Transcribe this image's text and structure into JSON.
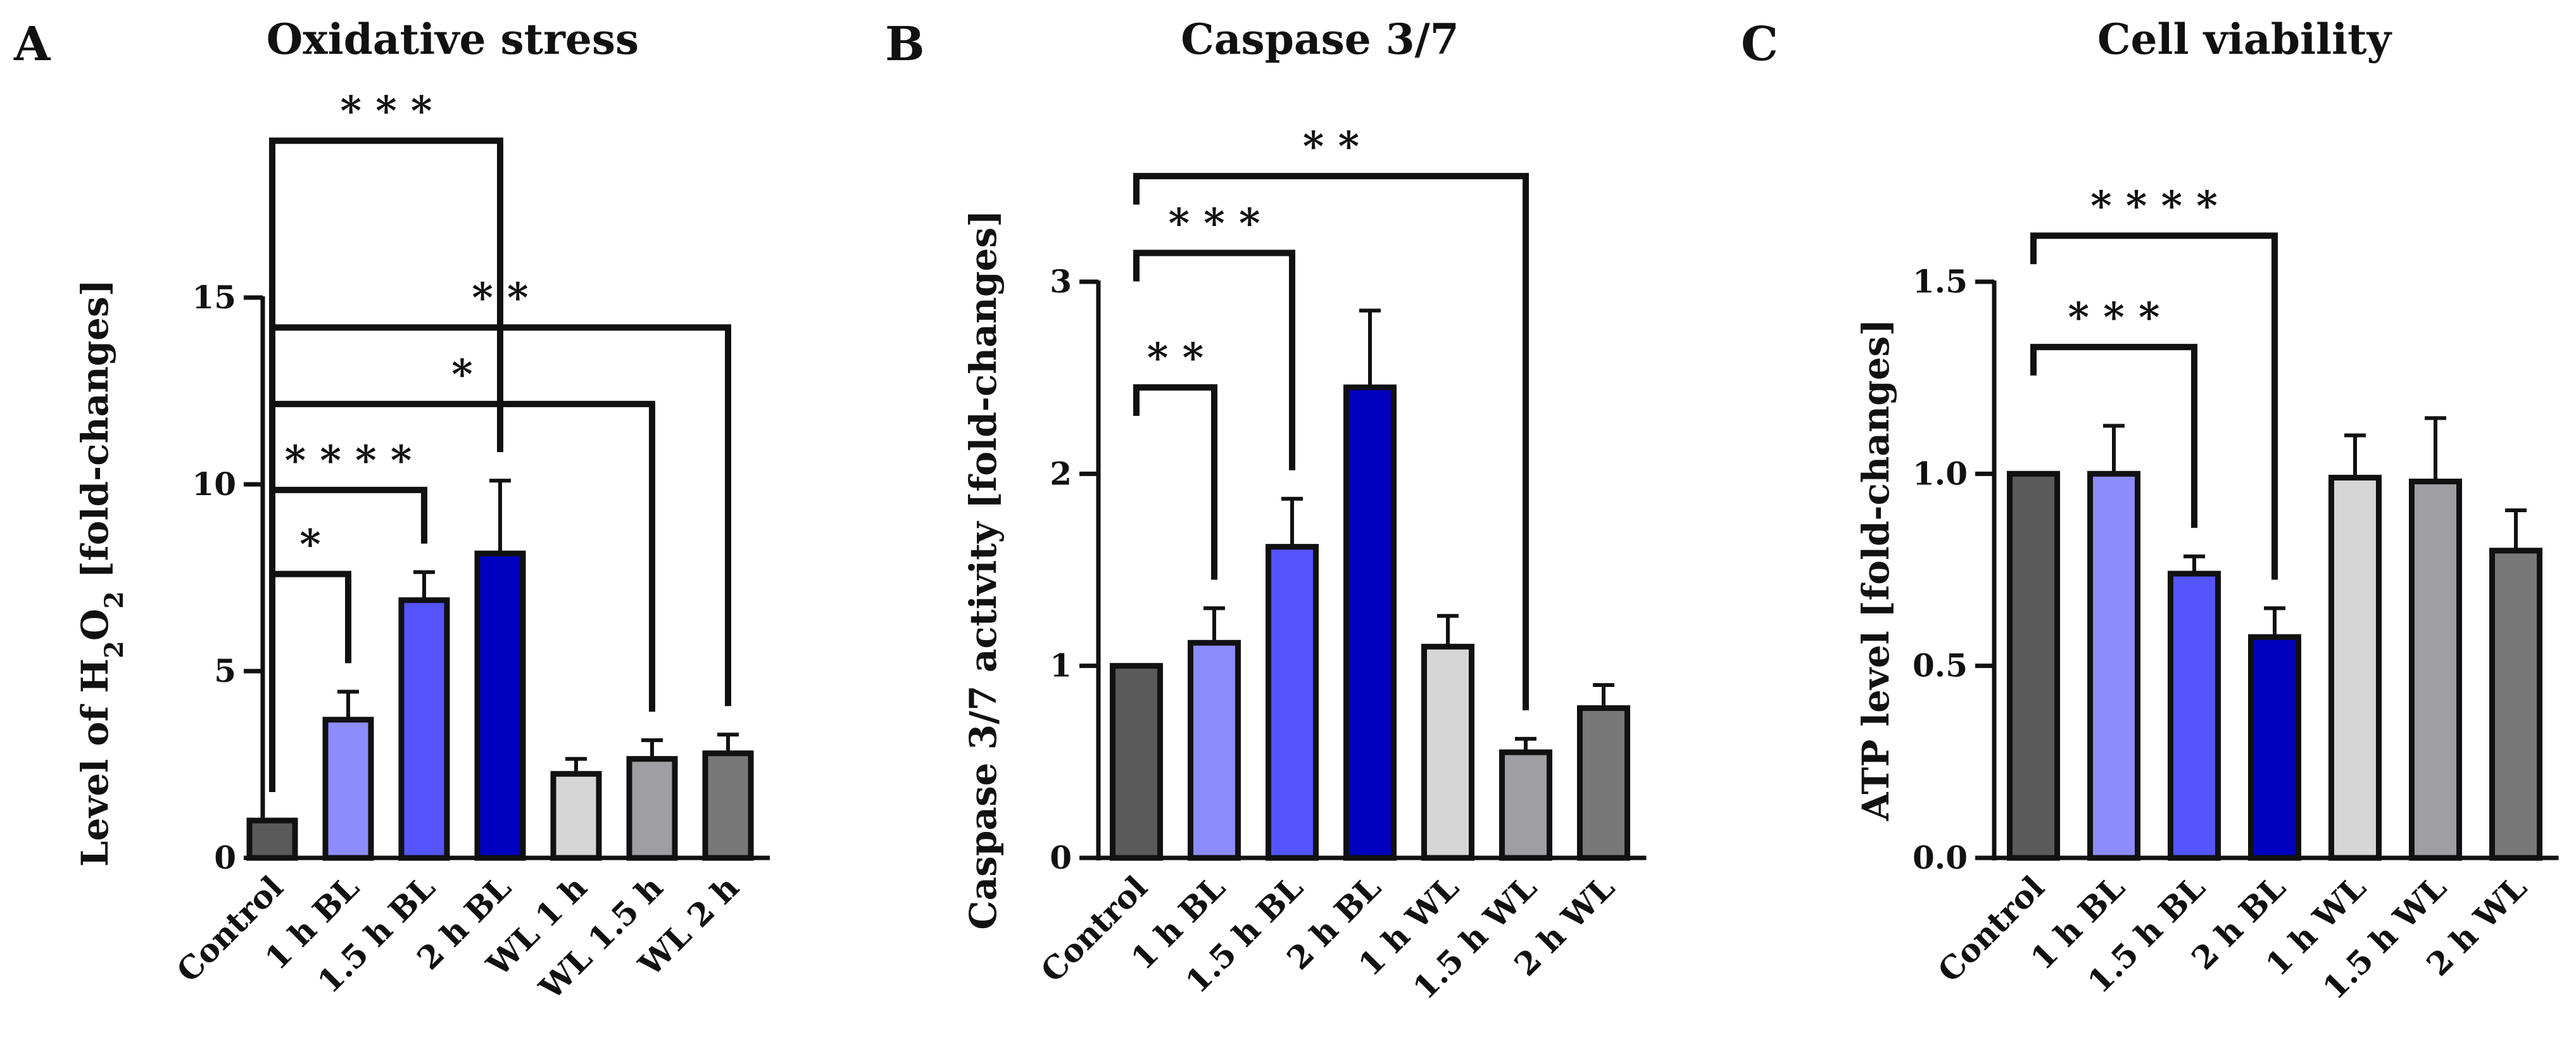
{
  "chart_data": [
    {
      "type": "bar",
      "letter": "A",
      "title": "Oxidative stress",
      "ylabel": {
        "prefix": "Level of H",
        "sub1": "2",
        "mid": "O",
        "sub2": "2",
        "suffix": " [fold-changes]"
      },
      "ylim": [
        0,
        15
      ],
      "yticks": [
        0,
        5,
        10,
        15
      ],
      "ytick_labels": [
        "0",
        "5",
        "10",
        "15"
      ],
      "categories": [
        "Control",
        "1 h BL",
        "1.5 h BL",
        "2 h BL",
        "WL 1 h",
        "WL 1.5 h",
        "WL 2 h"
      ],
      "values": [
        1.0,
        3.7,
        6.9,
        8.15,
        2.25,
        2.65,
        2.8
      ],
      "errors": [
        0.0,
        0.75,
        0.75,
        1.95,
        0.4,
        0.5,
        0.5
      ],
      "colors": [
        "#5a5a5a",
        "#8c8cff",
        "#5555ff",
        "#0000c0",
        "#d6d6d6",
        "#9e9ea3",
        "#787878"
      ],
      "significance": [
        {
          "to": 1,
          "label": "*",
          "level": 7.6
        },
        {
          "to": 2,
          "label": "* * * *",
          "level": 9.85
        },
        {
          "to": 5,
          "label": "*",
          "level": 12.15
        },
        {
          "to": 6,
          "label": "* *",
          "level": 14.2
        },
        {
          "to": 3,
          "label": "* * *",
          "level": 19.2
        }
      ]
    },
    {
      "type": "bar",
      "letter": "B",
      "title": "Caspase 3/7",
      "ylabel": {
        "text": "Caspase 3/7 activity [fold-changes]"
      },
      "ylim": [
        0,
        3
      ],
      "yticks": [
        0,
        1,
        2,
        3
      ],
      "ytick_labels": [
        "0",
        "1",
        "2",
        "3"
      ],
      "categories": [
        "Control",
        "1 h BL",
        "1.5 h BL",
        "2 h BL",
        "1 h WL",
        "1.5 h WL",
        "2 h WL"
      ],
      "values": [
        1.0,
        1.12,
        1.62,
        2.45,
        1.1,
        0.55,
        0.78
      ],
      "errors": [
        0.0,
        0.18,
        0.25,
        0.4,
        0.16,
        0.07,
        0.12
      ],
      "colors": [
        "#5a5a5a",
        "#8c8cff",
        "#5555ff",
        "#0000c0",
        "#d6d6d6",
        "#9e9ea3",
        "#787878"
      ],
      "significance": [
        {
          "to": 1,
          "label": "* *",
          "level": 2.45
        },
        {
          "to": 2,
          "label": "* * *",
          "level": 3.15
        },
        {
          "to": 5,
          "label": "* *",
          "level": 3.55
        }
      ]
    },
    {
      "type": "bar",
      "letter": "C",
      "title": "Cell viability",
      "ylabel": {
        "text": "ATP level [fold-changes]"
      },
      "ylim": [
        0,
        1.5
      ],
      "yticks": [
        0,
        0.5,
        1.0,
        1.5
      ],
      "ytick_labels": [
        "0.0",
        "0.5",
        "1.0",
        "1.5"
      ],
      "categories": [
        "Control",
        "1 h BL",
        "1.5 h BL",
        "2 h BL",
        "1 h WL",
        "1.5 h WL",
        "2 h WL"
      ],
      "values": [
        1.0,
        1.0,
        0.74,
        0.575,
        0.99,
        0.98,
        0.8
      ],
      "errors": [
        0.0,
        0.125,
        0.045,
        0.075,
        0.11,
        0.165,
        0.105
      ],
      "colors": [
        "#5a5a5a",
        "#8c8cff",
        "#5555ff",
        "#0000c0",
        "#d6d6d6",
        "#9e9ea3",
        "#787878"
      ],
      "significance": [
        {
          "to": 2,
          "label": "* * *",
          "level": 1.33
        },
        {
          "to": 3,
          "label": "* * * *",
          "level": 1.62
        }
      ]
    }
  ]
}
